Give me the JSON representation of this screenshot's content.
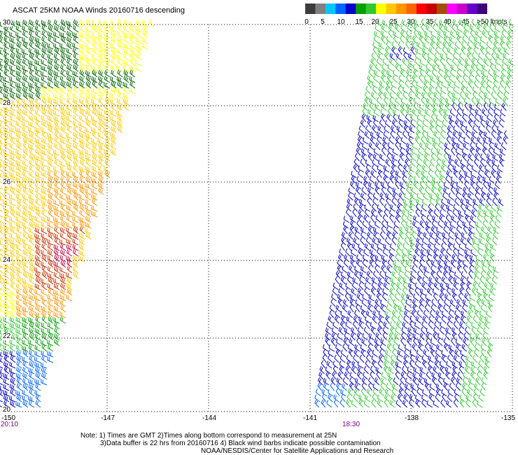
{
  "title": "ASCAT 25KM NOAA Winds 20160716 descending",
  "colorbar": {
    "labels": [
      "0",
      "5",
      "10",
      "15",
      "20",
      "25",
      "30",
      "35",
      "40",
      "45",
      ">50 knots"
    ],
    "colors": [
      "#3c3c3c",
      "#808080",
      "#00c8ff",
      "#0064ff",
      "#0000c8",
      "#00a000",
      "#32c832",
      "#ffff00",
      "#ffc800",
      "#ff9600",
      "#ff6400",
      "#ff0000",
      "#c80000",
      "#a05000",
      "#ff00ff",
      "#c800c8",
      "#6400c8",
      "#3c0078"
    ]
  },
  "axes": {
    "lat_labels": [
      "30",
      "28",
      "26",
      "24",
      "22",
      "20"
    ],
    "lon_labels": [
      "-150",
      "-147",
      "-144",
      "-141",
      "-138",
      "-135"
    ],
    "time_labels": [
      "20:10",
      "18:30"
    ]
  },
  "notes": [
    "Note: 1) Times are GMT 2)Times along bottom correspond to measurement at 25N",
    "3)Data buffer is 22 hrs from 20160716 4) Black wind barbs indicate possible contamination",
    "NOAA/NESDIS/Center for Satellite Applications and Research"
  ]
}
